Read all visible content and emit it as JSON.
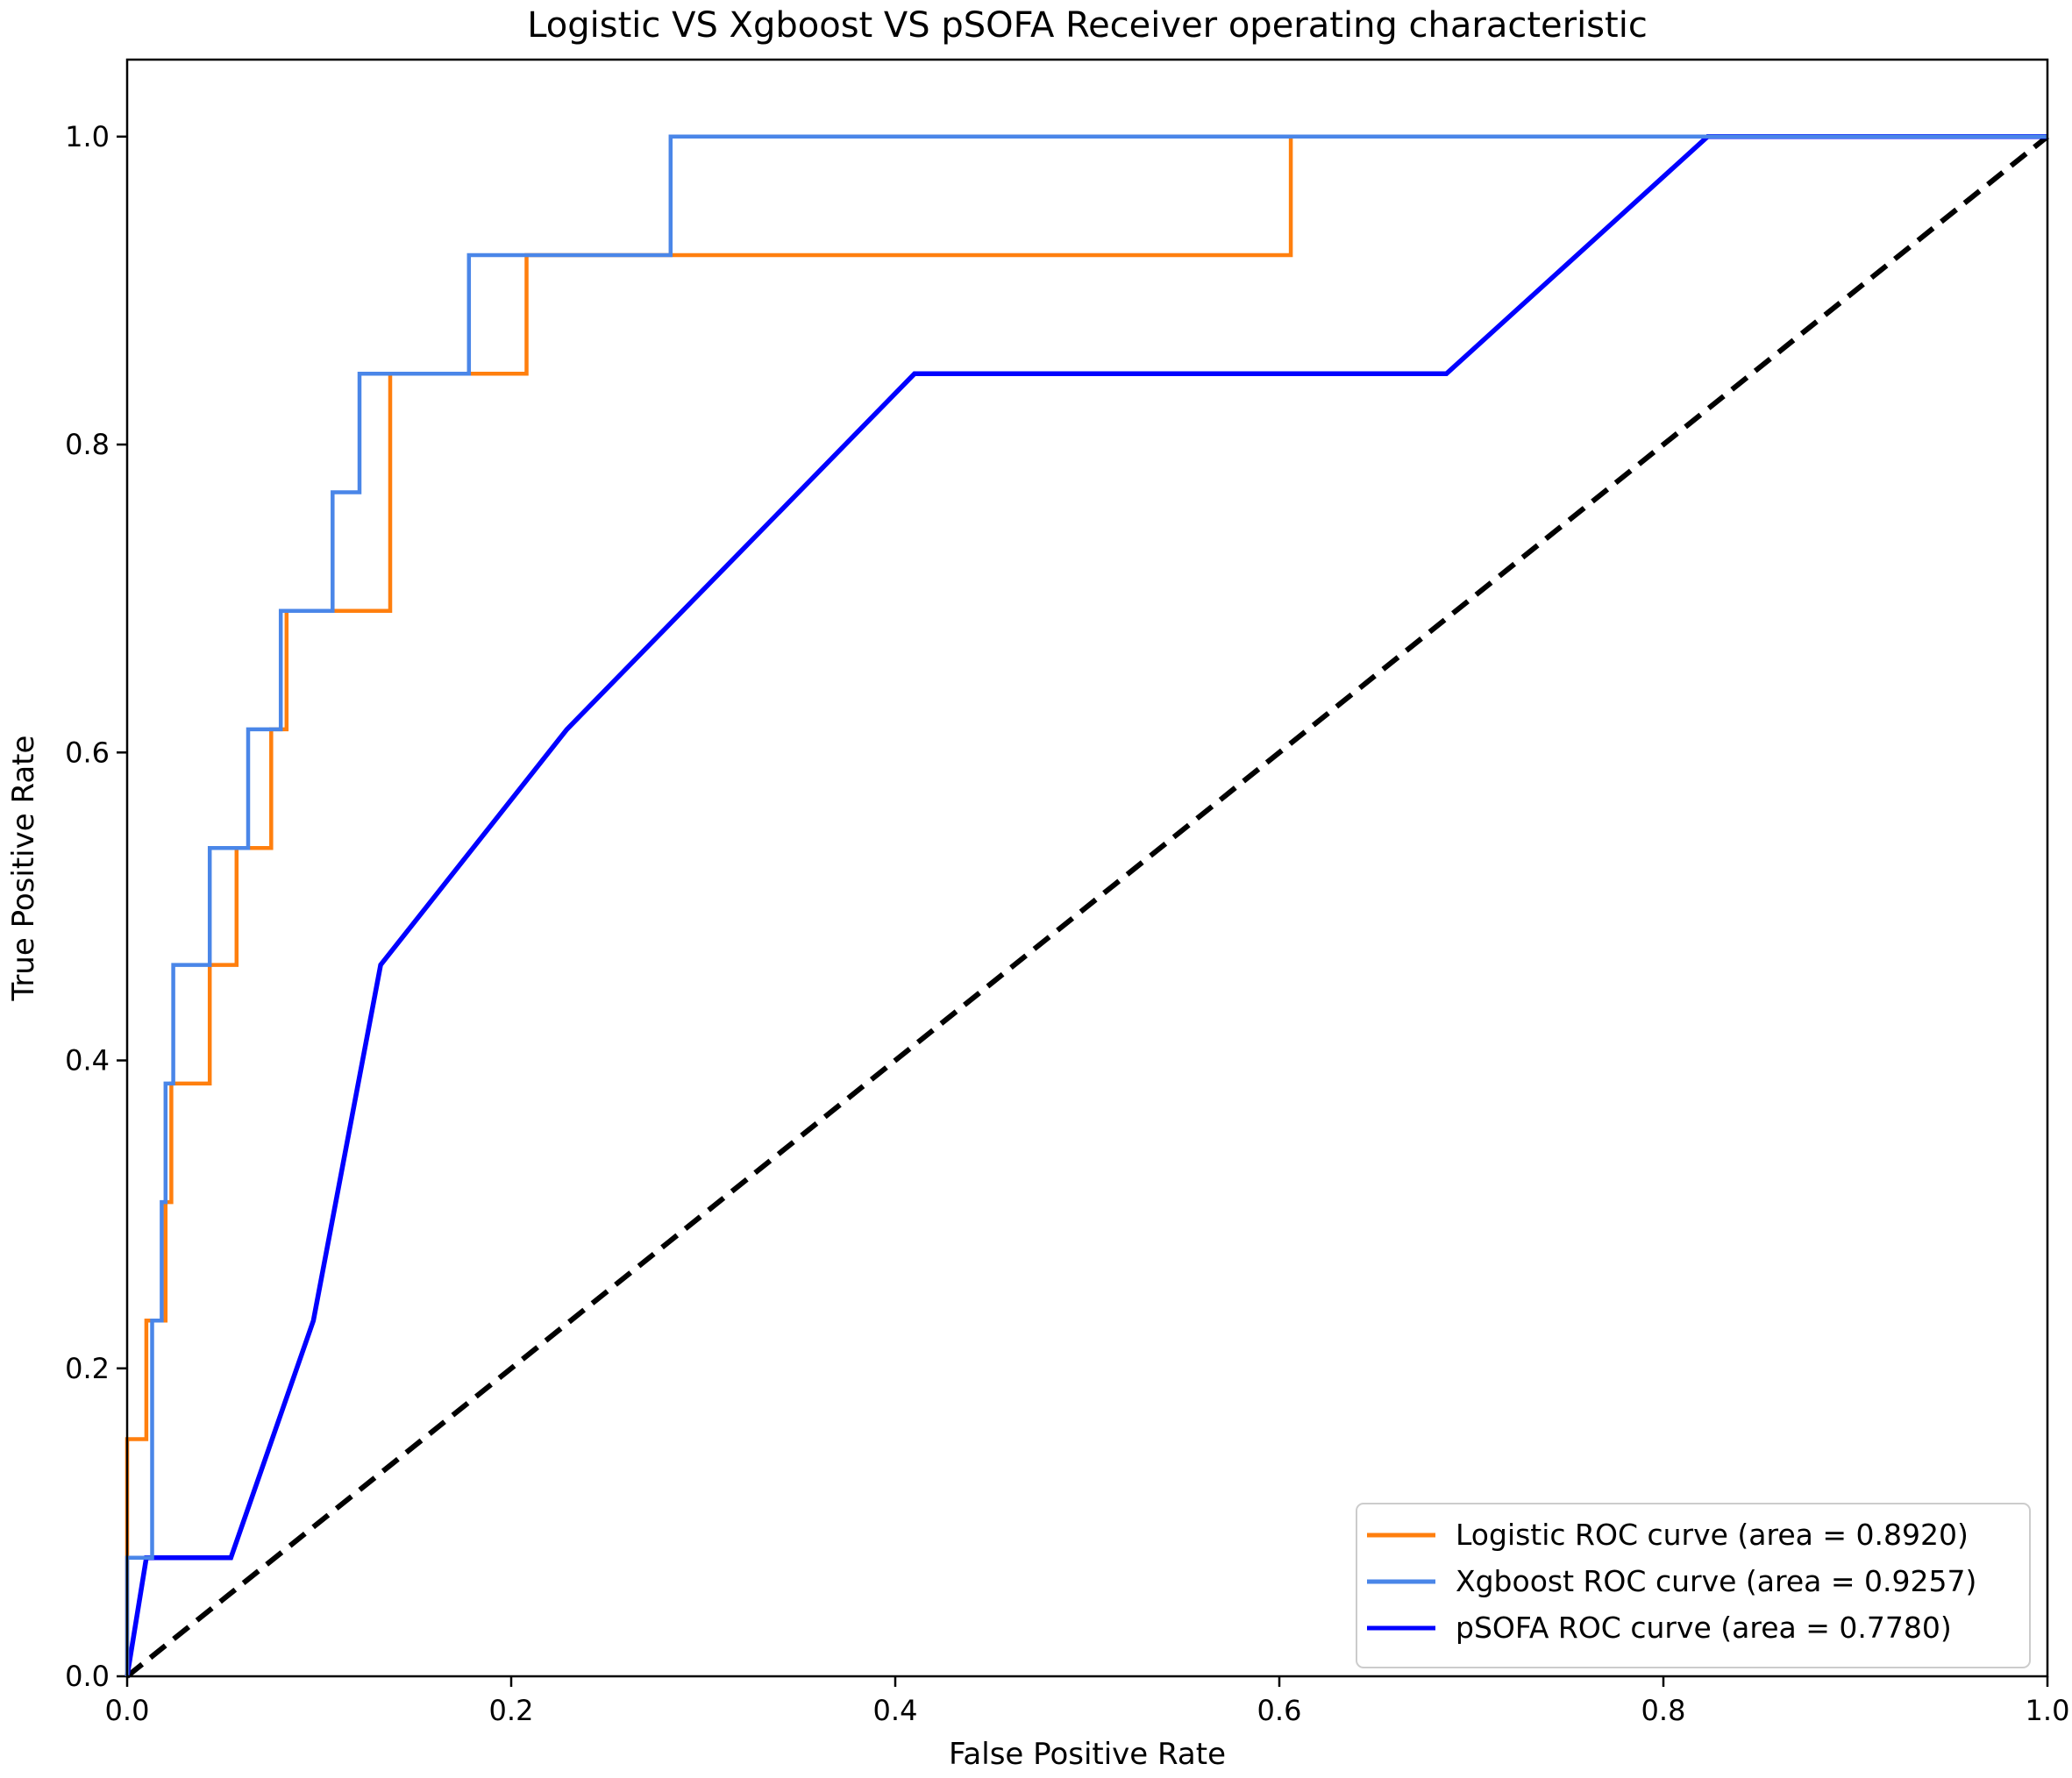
{
  "chart_data": {
    "type": "line",
    "title": "Logistic VS Xgboost VS pSOFA Receiver operating characteristic",
    "xlabel": "False Positive Rate",
    "ylabel": "True Positive Rate",
    "xlim": [
      0.0,
      1.0
    ],
    "ylim": [
      0.0,
      1.05
    ],
    "xticks": [
      "0.0",
      "0.2",
      "0.4",
      "0.6",
      "0.8",
      "1.0"
    ],
    "yticks": [
      "0.0",
      "0.2",
      "0.4",
      "0.6",
      "0.8",
      "1.0"
    ],
    "grid": false,
    "legend_position": "lower-right",
    "series": [
      {
        "name": "Logistic ROC curve (area = 0.8920)",
        "color": "#ff7f0e",
        "style": "solid",
        "points": [
          [
            0,
            0
          ],
          [
            0,
            0.154
          ],
          [
            0.01,
            0.154
          ],
          [
            0.01,
            0.231
          ],
          [
            0.02,
            0.231
          ],
          [
            0.02,
            0.308
          ],
          [
            0.023,
            0.308
          ],
          [
            0.023,
            0.385
          ],
          [
            0.043,
            0.385
          ],
          [
            0.043,
            0.462
          ],
          [
            0.057,
            0.462
          ],
          [
            0.057,
            0.538
          ],
          [
            0.075,
            0.538
          ],
          [
            0.075,
            0.615
          ],
          [
            0.083,
            0.615
          ],
          [
            0.083,
            0.692
          ],
          [
            0.137,
            0.692
          ],
          [
            0.137,
            0.846
          ],
          [
            0.208,
            0.846
          ],
          [
            0.208,
            0.923
          ],
          [
            0.606,
            0.923
          ],
          [
            0.606,
            1.0
          ],
          [
            1.0,
            1.0
          ]
        ]
      },
      {
        "name": "Xgboost ROC curve (area = 0.9257)",
        "color": "#4a86e8",
        "style": "solid",
        "points": [
          [
            0,
            0
          ],
          [
            0,
            0.077
          ],
          [
            0.013,
            0.077
          ],
          [
            0.013,
            0.231
          ],
          [
            0.018,
            0.231
          ],
          [
            0.018,
            0.308
          ],
          [
            0.02,
            0.308
          ],
          [
            0.02,
            0.385
          ],
          [
            0.024,
            0.385
          ],
          [
            0.024,
            0.462
          ],
          [
            0.043,
            0.462
          ],
          [
            0.043,
            0.538
          ],
          [
            0.063,
            0.538
          ],
          [
            0.063,
            0.615
          ],
          [
            0.08,
            0.615
          ],
          [
            0.08,
            0.692
          ],
          [
            0.107,
            0.692
          ],
          [
            0.107,
            0.769
          ],
          [
            0.121,
            0.769
          ],
          [
            0.121,
            0.846
          ],
          [
            0.178,
            0.846
          ],
          [
            0.178,
            0.923
          ],
          [
            0.283,
            0.923
          ],
          [
            0.283,
            1.0
          ],
          [
            1.0,
            1.0
          ]
        ]
      },
      {
        "name": "pSOFA ROC curve (area = 0.7780)",
        "color": "#0000ff",
        "style": "solid",
        "points": [
          [
            0,
            0
          ],
          [
            0.01,
            0.077
          ],
          [
            0.054,
            0.077
          ],
          [
            0.097,
            0.231
          ],
          [
            0.132,
            0.462
          ],
          [
            0.229,
            0.615
          ],
          [
            0.41,
            0.846
          ],
          [
            0.687,
            0.846
          ],
          [
            0.823,
            1.0
          ],
          [
            1.0,
            1.0
          ]
        ]
      },
      {
        "name": "",
        "color": "#000000",
        "style": "dashed",
        "points": [
          [
            0,
            0
          ],
          [
            1,
            1
          ]
        ]
      }
    ]
  }
}
